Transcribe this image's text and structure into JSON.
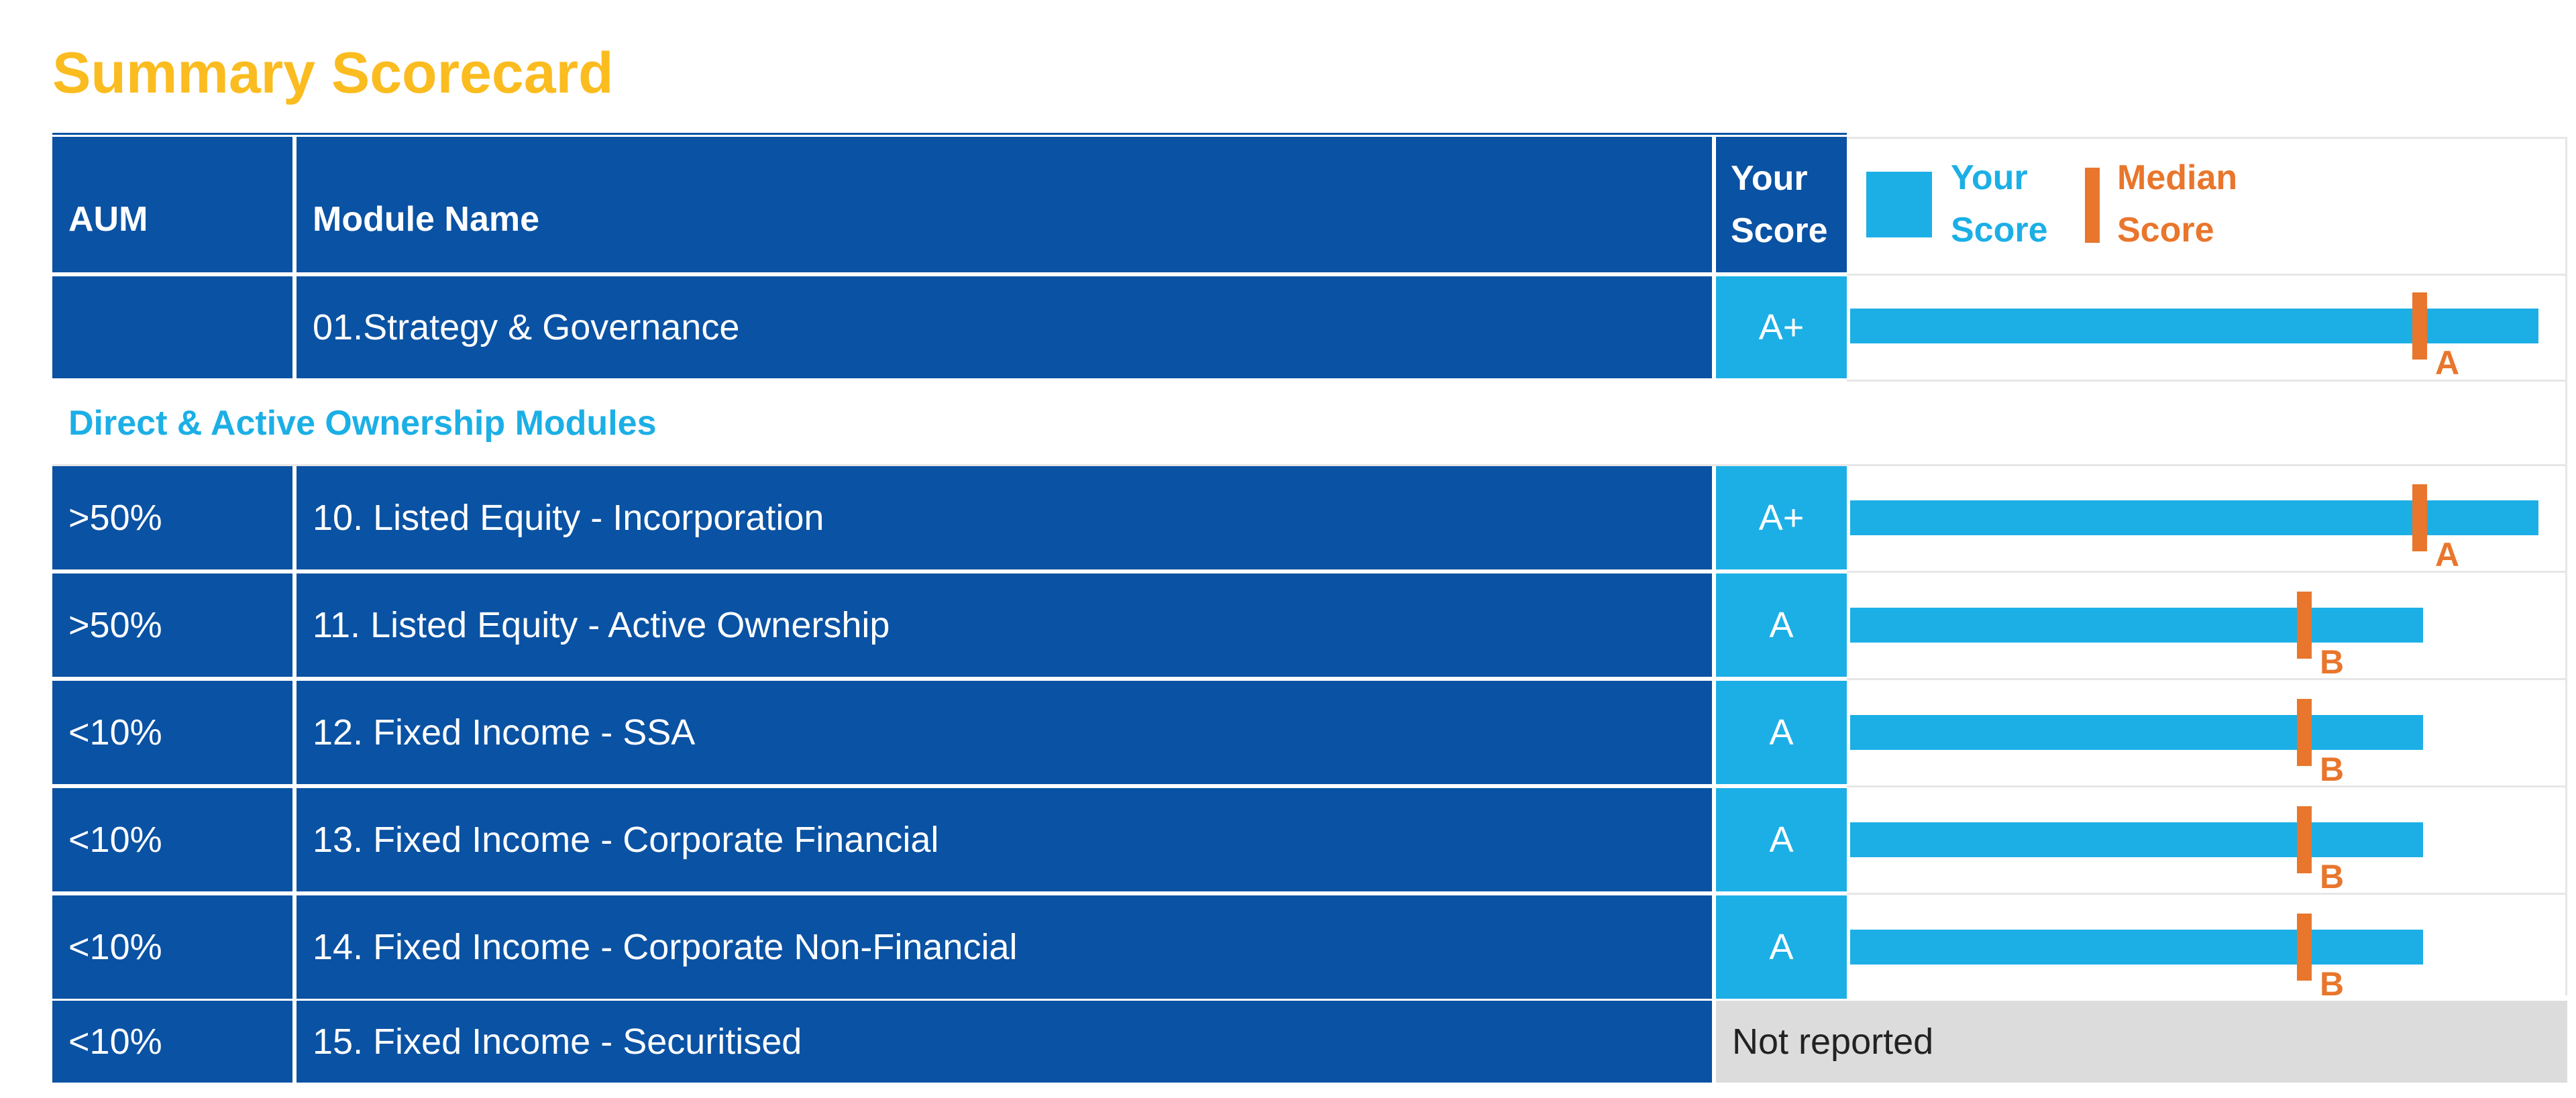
{
  "title": "Summary Scorecard",
  "header": {
    "aum": "AUM",
    "module_name": "Module Name",
    "your_score_line1": "Your",
    "your_score_line2": "Score"
  },
  "legend": {
    "your_score_line1": "Your",
    "your_score_line2": "Score",
    "median_score_line1": "Median",
    "median_score_line2": "Score",
    "your_score_color": "#1cafe6",
    "median_score_color": "#e8762c"
  },
  "section_label": "Direct & Active Ownership Modules",
  "colors": {
    "header_bg": "#0a52a3",
    "score_bg": "#1cafe6",
    "title": "#fbbc20",
    "not_reported_bg": "#dcdcdc"
  },
  "chart_data": {
    "type": "bar",
    "grade_scale": [
      "E",
      "D",
      "C",
      "B",
      "A",
      "A+"
    ],
    "categories": [
      "01.Strategy & Governance",
      "10. Listed Equity - Incorporation",
      "11. Listed Equity - Active Ownership",
      "12. Fixed Income - SSA",
      "13. Fixed Income - Corporate Financial",
      "14. Fixed Income - Corporate Non-Financial"
    ],
    "series": [
      {
        "name": "Your Score",
        "values": [
          "A+",
          "A+",
          "A",
          "A",
          "A",
          "A"
        ]
      },
      {
        "name": "Median Score",
        "values": [
          "A",
          "A",
          "B",
          "B",
          "B",
          "B"
        ]
      }
    ]
  },
  "rows": [
    {
      "aum": "",
      "module": "01.Strategy & Governance",
      "score": "A+",
      "median": "A"
    },
    {
      "aum": ">50%",
      "module": "10. Listed Equity - Incorporation",
      "score": "A+",
      "median": "A"
    },
    {
      "aum": ">50%",
      "module": "11. Listed Equity - Active Ownership",
      "score": "A",
      "median": "B"
    },
    {
      "aum": "<10%",
      "module": "12. Fixed Income - SSA",
      "score": "A",
      "median": "B"
    },
    {
      "aum": "<10%",
      "module": "13. Fixed Income - Corporate Financial",
      "score": "A",
      "median": "B"
    },
    {
      "aum": "<10%",
      "module": "14. Fixed Income - Corporate Non-Financial",
      "score": "A",
      "median": "B"
    },
    {
      "aum": "<10%",
      "module": "15. Fixed Income - Securitised",
      "score": "Not reported",
      "median": ""
    }
  ]
}
